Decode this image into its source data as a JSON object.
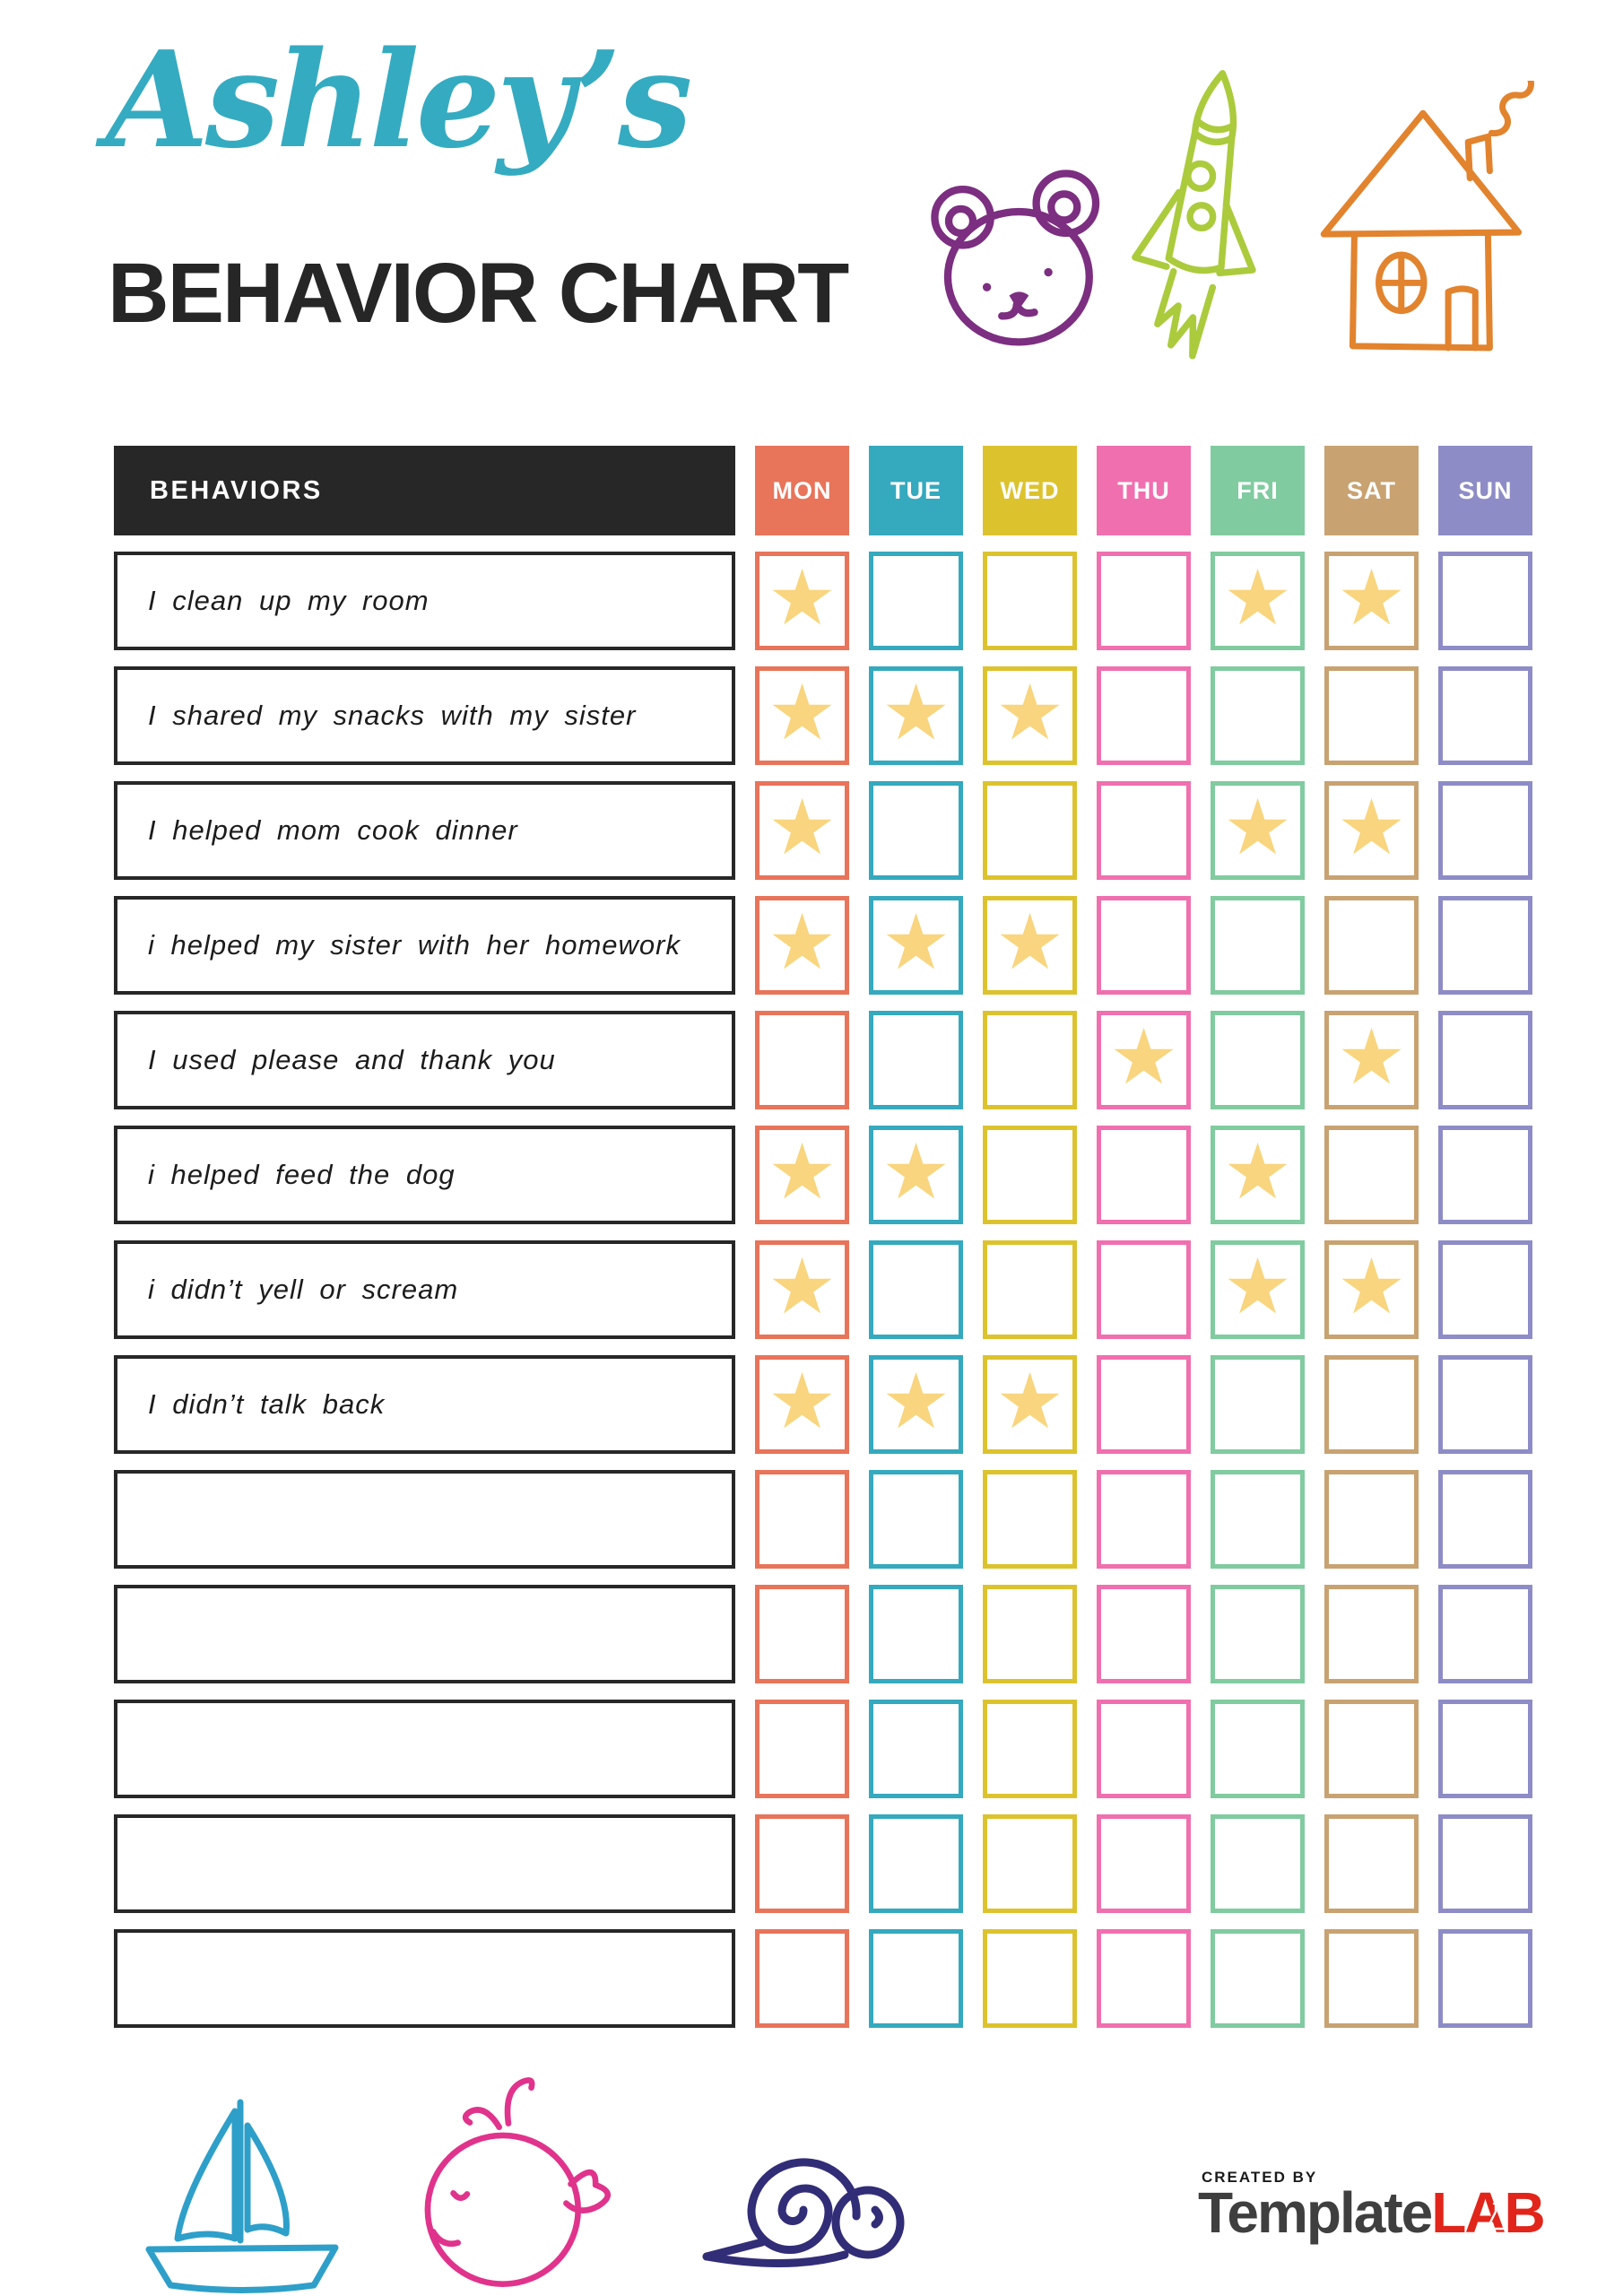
{
  "header": {
    "owner_name": "Ashley’s",
    "owner_name_color": "#35abc1",
    "title": "BEHAVIOR CHART"
  },
  "doodles_top": [
    {
      "name": "bear",
      "color": "#7c2e80"
    },
    {
      "name": "rocket",
      "color": "#abcb3d"
    },
    {
      "name": "house",
      "color": "#e2832e"
    }
  ],
  "doodles_bottom": [
    {
      "name": "sailboat",
      "color": "#2e9fc9"
    },
    {
      "name": "whale",
      "color": "#e0338c"
    },
    {
      "name": "snail",
      "color": "#322d77"
    }
  ],
  "table": {
    "behaviors_header": "BEHAVIORS",
    "header_bg": "#272727",
    "star_color": "#f8d57e",
    "days": [
      {
        "label": "MON",
        "color": "#e8745a"
      },
      {
        "label": "TUE",
        "color": "#35a9be"
      },
      {
        "label": "WED",
        "color": "#dcc32e"
      },
      {
        "label": "THU",
        "color": "#f06faf"
      },
      {
        "label": "FRI",
        "color": "#80cba0"
      },
      {
        "label": "SAT",
        "color": "#c8a271"
      },
      {
        "label": "SUN",
        "color": "#8e8cc6"
      }
    ],
    "rows": [
      {
        "behavior": "I clean up my room",
        "stars": [
          1,
          0,
          0,
          0,
          1,
          1,
          0
        ]
      },
      {
        "behavior": "I shared my snacks with my sister",
        "stars": [
          1,
          1,
          1,
          0,
          0,
          0,
          0
        ]
      },
      {
        "behavior": "I helped mom cook dinner",
        "stars": [
          1,
          0,
          0,
          0,
          1,
          1,
          0
        ]
      },
      {
        "behavior": "i helped my sister with her homework",
        "stars": [
          1,
          1,
          1,
          0,
          0,
          0,
          0
        ]
      },
      {
        "behavior": "I used please and thank you",
        "stars": [
          0,
          0,
          0,
          1,
          0,
          1,
          0
        ]
      },
      {
        "behavior": "i helped feed the dog",
        "stars": [
          1,
          1,
          0,
          0,
          1,
          0,
          0
        ]
      },
      {
        "behavior": "i didn’t yell or scream",
        "stars": [
          1,
          0,
          0,
          0,
          1,
          1,
          0
        ]
      },
      {
        "behavior": "I didn’t talk back",
        "stars": [
          1,
          1,
          1,
          0,
          0,
          0,
          0
        ]
      },
      {
        "behavior": "",
        "stars": [
          0,
          0,
          0,
          0,
          0,
          0,
          0
        ]
      },
      {
        "behavior": "",
        "stars": [
          0,
          0,
          0,
          0,
          0,
          0,
          0
        ]
      },
      {
        "behavior": "",
        "stars": [
          0,
          0,
          0,
          0,
          0,
          0,
          0
        ]
      },
      {
        "behavior": "",
        "stars": [
          0,
          0,
          0,
          0,
          0,
          0,
          0
        ]
      },
      {
        "behavior": "",
        "stars": [
          0,
          0,
          0,
          0,
          0,
          0,
          0
        ]
      }
    ]
  },
  "footer": {
    "created_by": "CREATED BY",
    "brand_part1": "Template",
    "brand_part2": "LAB",
    "brand_color1": "#3f3f3f",
    "brand_color2": "#e1251b"
  }
}
